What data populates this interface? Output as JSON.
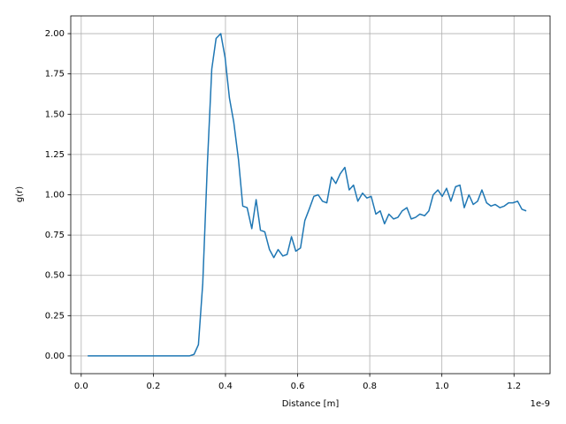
{
  "chart_data": {
    "type": "line",
    "xlabel": "Distance [m]",
    "ylabel": "g(r)",
    "x_offset_label": "1e-9",
    "x": [
      0.018,
      0.03,
      0.042,
      0.055,
      0.067,
      0.079,
      0.092,
      0.104,
      0.116,
      0.128,
      0.141,
      0.153,
      0.165,
      0.178,
      0.19,
      0.202,
      0.214,
      0.227,
      0.239,
      0.251,
      0.264,
      0.276,
      0.288,
      0.3,
      0.313,
      0.325,
      0.337,
      0.35,
      0.362,
      0.374,
      0.387,
      0.399,
      0.411,
      0.423,
      0.436,
      0.448,
      0.46,
      0.473,
      0.485,
      0.497,
      0.509,
      0.522,
      0.534,
      0.546,
      0.559,
      0.571,
      0.583,
      0.595,
      0.608,
      0.62,
      0.632,
      0.645,
      0.657,
      0.669,
      0.681,
      0.694,
      0.706,
      0.718,
      0.731,
      0.743,
      0.755,
      0.767,
      0.78,
      0.792,
      0.804,
      0.817,
      0.829,
      0.841,
      0.853,
      0.866,
      0.878,
      0.89,
      0.903,
      0.915,
      0.927,
      0.939,
      0.952,
      0.964,
      0.976,
      0.989,
      1.001,
      1.013,
      1.025,
      1.038,
      1.05,
      1.062,
      1.075,
      1.087,
      1.099,
      1.111,
      1.124,
      1.136,
      1.148,
      1.161,
      1.173,
      1.185,
      1.197,
      1.21,
      1.222,
      1.234
    ],
    "series": [
      {
        "color": "#1f77b4",
        "values": [
          0,
          0,
          0,
          0,
          0,
          0,
          0,
          0,
          0,
          0,
          0,
          0,
          0,
          0,
          0,
          0,
          0,
          0,
          0,
          0,
          0,
          0,
          0,
          0,
          0.01,
          0.07,
          0.45,
          1.2,
          1.78,
          1.97,
          2.0,
          1.85,
          1.6,
          1.45,
          1.22,
          0.93,
          0.92,
          0.79,
          0.97,
          0.78,
          0.77,
          0.66,
          0.61,
          0.66,
          0.62,
          0.63,
          0.74,
          0.65,
          0.67,
          0.84,
          0.91,
          0.99,
          1.0,
          0.96,
          0.95,
          1.11,
          1.07,
          1.13,
          1.17,
          1.03,
          1.06,
          0.96,
          1.01,
          0.98,
          0.99,
          0.88,
          0.9,
          0.82,
          0.88,
          0.85,
          0.86,
          0.9,
          0.92,
          0.85,
          0.86,
          0.88,
          0.87,
          0.9,
          1.0,
          1.03,
          0.99,
          1.04,
          0.96,
          1.05,
          1.06,
          0.92,
          1.0,
          0.94,
          0.96,
          1.03,
          0.95,
          0.93,
          0.94,
          0.92,
          0.93,
          0.95,
          0.95,
          0.96,
          0.91,
          0.9
        ]
      }
    ],
    "xlim": [
      -0.029,
      1.3
    ],
    "ylim": [
      -0.11,
      2.11
    ],
    "xticks": [
      {
        "value": 0,
        "label": "0.0"
      },
      {
        "value": 0.2,
        "label": "0.2"
      },
      {
        "value": 0.4,
        "label": "0.4"
      },
      {
        "value": 0.6,
        "label": "0.6"
      },
      {
        "value": 0.8,
        "label": "0.8"
      },
      {
        "value": 1,
        "label": "1.0"
      },
      {
        "value": 1.2,
        "label": "1.2"
      }
    ],
    "yticks": [
      {
        "value": 0,
        "label": "0.00"
      },
      {
        "value": 0.25,
        "label": "0.25"
      },
      {
        "value": 0.5,
        "label": "0.50"
      },
      {
        "value": 0.75,
        "label": "0.75"
      },
      {
        "value": 1,
        "label": "1.00"
      },
      {
        "value": 1.25,
        "label": "1.25"
      },
      {
        "value": 1.5,
        "label": "1.50"
      },
      {
        "value": 1.75,
        "label": "1.75"
      },
      {
        "value": 2,
        "label": "2.00"
      }
    ],
    "grid": true
  }
}
